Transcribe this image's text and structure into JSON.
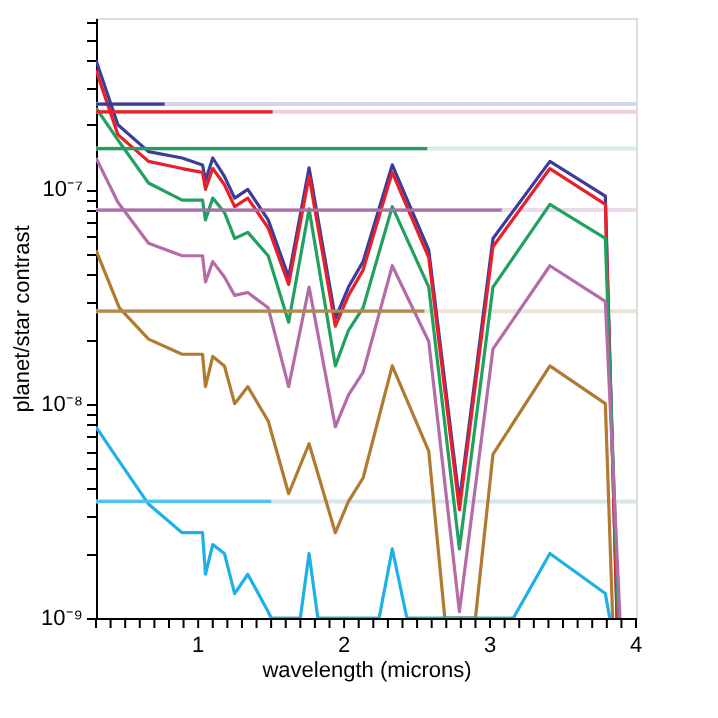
{
  "chart_data": {
    "type": "line",
    "xlabel": "wavelength (microns)",
    "ylabel": "planet/star contrast",
    "log": "y",
    "xlim": [
      0.3,
      4.0
    ],
    "ylim": [
      1e-09,
      6.3e-07
    ],
    "xticks": [
      {
        "value": 0.3,
        "label": null
      },
      {
        "value": 0.4,
        "label": null
      },
      {
        "value": 0.5,
        "label": null
      },
      {
        "value": 0.6,
        "label": null
      },
      {
        "value": 0.7,
        "label": null
      },
      {
        "value": 0.8,
        "label": null
      },
      {
        "value": 0.9,
        "label": null
      },
      1,
      {
        "value": 1.1,
        "label": null
      },
      {
        "value": 1.2,
        "label": null
      },
      {
        "value": 1.3,
        "label": null
      },
      {
        "value": 1.4,
        "label": null
      },
      {
        "value": 1.5,
        "label": null
      },
      {
        "value": 1.6,
        "label": null
      },
      {
        "value": 1.7,
        "label": null
      },
      {
        "value": 1.8,
        "label": null
      },
      {
        "value": 1.9,
        "label": null
      },
      2,
      {
        "value": 2.1,
        "label": null
      },
      {
        "value": 2.2,
        "label": null
      },
      {
        "value": 2.3,
        "label": null
      },
      {
        "value": 2.4,
        "label": null
      },
      {
        "value": 2.5,
        "label": null
      },
      {
        "value": 2.6,
        "label": null
      },
      {
        "value": 2.7,
        "label": null
      },
      {
        "value": 2.8,
        "label": null
      },
      {
        "value": 2.9,
        "label": null
      },
      3,
      {
        "value": 3.1,
        "label": null
      },
      {
        "value": 3.2,
        "label": null
      },
      {
        "value": 3.3,
        "label": null
      },
      {
        "value": 3.4,
        "label": null
      },
      {
        "value": 3.5,
        "label": null
      },
      {
        "value": 3.6,
        "label": null
      },
      {
        "value": 3.7,
        "label": null
      },
      {
        "value": 3.8,
        "label": null
      },
      {
        "value": 3.9,
        "label": null
      },
      4
    ],
    "yticks": [
      {
        "value": 1e-09,
        "label": "10⁻⁹"
      },
      {
        "value": 2e-09,
        "label": null
      },
      {
        "value": 3e-09,
        "label": null
      },
      {
        "value": 4e-09,
        "label": null
      },
      {
        "value": 5e-09,
        "label": null
      },
      {
        "value": 6e-09,
        "label": null
      },
      {
        "value": 7e-09,
        "label": null
      },
      {
        "value": 8e-09,
        "label": null
      },
      {
        "value": 9e-09,
        "label": null
      },
      {
        "value": 1e-08,
        "label": "10⁻⁸"
      },
      {
        "value": 2e-08,
        "label": null
      },
      {
        "value": 3e-08,
        "label": null
      },
      {
        "value": 4e-08,
        "label": null
      },
      {
        "value": 5e-08,
        "label": null
      },
      {
        "value": 6e-08,
        "label": null
      },
      {
        "value": 7e-08,
        "label": null
      },
      {
        "value": 8e-08,
        "label": null
      },
      {
        "value": 9e-08,
        "label": null
      },
      {
        "value": 1e-07,
        "label": "10⁻⁷"
      },
      {
        "value": 2e-07,
        "label": null
      },
      {
        "value": 3e-07,
        "label": null
      },
      {
        "value": 4e-07,
        "label": null
      },
      {
        "value": 5e-07,
        "label": null
      },
      {
        "value": 6e-07,
        "label": null
      }
    ],
    "grid": false,
    "ref_lines": [
      {
        "axis": "y",
        "value": 2.5e-07,
        "color": "#d4d4ea"
      },
      {
        "axis": "y",
        "value": 2.3e-07,
        "color": "#f0d4d4"
      },
      {
        "axis": "y",
        "value": 1.55e-07,
        "color": "#d8ece4"
      },
      {
        "axis": "y",
        "value": 8e-08,
        "color": "#eadcea"
      },
      {
        "axis": "y",
        "value": 2.7e-08,
        "color": "#ebe2d8"
      },
      {
        "axis": "y",
        "value": 3.5e-09,
        "color": "#d6e6ea"
      }
    ],
    "series": [
      {
        "type": "line",
        "color": "#3c3c9c",
        "x": [
          0.3,
          0.45,
          0.66,
          0.89,
          1.03,
          1.05,
          1.1,
          1.18,
          1.25,
          1.34,
          1.48,
          1.62,
          1.76,
          1.94,
          2.03,
          2.13,
          2.33,
          2.58,
          2.79,
          3.02,
          3.41,
          3.79,
          3.87
        ],
        "values": [
          4e-07,
          2e-07,
          1.5e-07,
          1.4e-07,
          1.3e-07,
          1.1e-07,
          1.4e-07,
          1.15e-07,
          9.1e-08,
          1e-07,
          7.2e-08,
          3.9e-08,
          1.26e-07,
          2.5e-08,
          3.5e-08,
          4.6e-08,
          1.3e-07,
          5.2e-08,
          3.5e-09,
          5.9e-08,
          1.35e-07,
          9.3e-08,
          1e-09
        ]
      },
      {
        "type": "line",
        "color": "#e8202a",
        "x": [
          0.3,
          0.45,
          0.66,
          0.89,
          1.03,
          1.05,
          1.1,
          1.18,
          1.25,
          1.34,
          1.48,
          1.62,
          1.76,
          1.94,
          2.03,
          2.13,
          2.33,
          2.58,
          2.79,
          3.02,
          3.41,
          3.79,
          3.87
        ],
        "values": [
          3.6e-07,
          1.8e-07,
          1.35e-07,
          1.25e-07,
          1.2e-07,
          1e-07,
          1.25e-07,
          1.05e-07,
          8.3e-08,
          9.1e-08,
          6.6e-08,
          3.6e-08,
          1.15e-07,
          2.3e-08,
          3.2e-08,
          4.2e-08,
          1.2e-07,
          4.8e-08,
          3.2e-09,
          5.4e-08,
          1.25e-07,
          8.5e-08,
          1e-09
        ]
      },
      {
        "type": "line",
        "color": "#22a060",
        "x": [
          0.3,
          0.45,
          0.66,
          0.89,
          1.03,
          1.05,
          1.1,
          1.18,
          1.25,
          1.34,
          1.48,
          1.62,
          1.76,
          1.94,
          2.03,
          2.13,
          2.33,
          2.58,
          2.79,
          3.02,
          3.41,
          3.79,
          3.88
        ],
        "values": [
          2.4e-07,
          1.7e-07,
          1.07e-07,
          8.9e-08,
          8.9e-08,
          7.2e-08,
          9.1e-08,
          7.8e-08,
          5.9e-08,
          6.3e-08,
          4.9e-08,
          2.4e-08,
          8.1e-08,
          1.5e-08,
          2.2e-08,
          2.8e-08,
          8.3e-08,
          3.5e-08,
          2.1e-09,
          3.5e-08,
          8.5e-08,
          5.9e-08,
          1e-09
        ]
      },
      {
        "type": "line",
        "color": "#b46ca8",
        "x": [
          0.3,
          0.45,
          0.66,
          0.89,
          1.03,
          1.05,
          1.1,
          1.18,
          1.25,
          1.34,
          1.48,
          1.62,
          1.76,
          1.94,
          2.03,
          2.13,
          2.33,
          2.58,
          2.79,
          3.02,
          3.41,
          3.79,
          3.89
        ],
        "values": [
          1.4e-07,
          8.7e-08,
          5.6e-08,
          4.9e-08,
          4.9e-08,
          3.7e-08,
          4.6e-08,
          3.9e-08,
          3.2e-08,
          3.3e-08,
          2.8e-08,
          1.2e-08,
          3.5e-08,
          7.8e-09,
          1.1e-08,
          1.4e-08,
          4.4e-08,
          1.95e-08,
          1.07e-09,
          1.8e-08,
          4.4e-08,
          3e-08,
          1e-09
        ]
      },
      {
        "type": "line",
        "color": "#b07a30",
        "x": [
          0.3,
          0.46,
          0.66,
          0.89,
          1.03,
          1.05,
          1.1,
          1.18,
          1.25,
          1.34,
          1.48,
          1.62,
          1.76,
          1.94,
          2.03,
          2.13,
          2.33,
          2.58,
          2.69,
          2.9,
          3.02,
          3.41,
          3.79,
          3.84
        ],
        "values": [
          5.2e-08,
          2.8e-08,
          2e-08,
          1.7e-08,
          1.7e-08,
          1.2e-08,
          1.66e-08,
          1.5e-08,
          1e-08,
          1.2e-08,
          8.3e-09,
          3.8e-09,
          6.5e-09,
          2.5e-09,
          3.5e-09,
          4.5e-09,
          1.5e-08,
          6e-09,
          1e-09,
          1e-09,
          5.8e-09,
          1.5e-08,
          1e-08,
          1e-09
        ]
      },
      {
        "type": "line",
        "color": "#20b0e8",
        "x": [
          0.3,
          0.45,
          0.66,
          0.89,
          1.03,
          1.05,
          1.1,
          1.18,
          1.25,
          1.34,
          1.48,
          1.5,
          1.7,
          1.76,
          1.82,
          2.24,
          2.33,
          2.43,
          3.16,
          3.41,
          3.79,
          3.82
        ],
        "values": [
          7.8e-09,
          5.5e-09,
          3.4e-09,
          2.5e-09,
          2.5e-09,
          1.6e-09,
          2.2e-09,
          2e-09,
          1.3e-09,
          1.6e-09,
          1.07e-09,
          1e-09,
          1e-09,
          2e-09,
          1e-09,
          1e-09,
          2.1e-09,
          1e-09,
          1e-09,
          2e-09,
          1.3e-09,
          1e-09
        ]
      },
      {
        "type": "line",
        "color": "#3c3c9c",
        "x": [
          0.3,
          0.77
        ],
        "values": [
          2.5e-07,
          2.5e-07
        ]
      },
      {
        "type": "line",
        "color": "#e8202a",
        "x": [
          0.3,
          1.51
        ],
        "values": [
          2.3e-07,
          2.3e-07
        ]
      },
      {
        "type": "line",
        "color": "#22a060",
        "x": [
          0.3,
          2.57
        ],
        "values": [
          1.55e-07,
          1.55e-07
        ]
      },
      {
        "type": "line",
        "color": "#a872a4",
        "x": [
          0.3,
          3.08
        ],
        "values": [
          8e-08,
          8e-08
        ]
      },
      {
        "type": "line",
        "color": "#b08a50",
        "x": [
          0.3,
          2.55
        ],
        "values": [
          2.7e-08,
          2.7e-08
        ]
      },
      {
        "type": "line",
        "color": "#50c0ec",
        "x": [
          0.3,
          1.5
        ],
        "values": [
          3.5e-09,
          3.5e-09
        ]
      }
    ]
  }
}
